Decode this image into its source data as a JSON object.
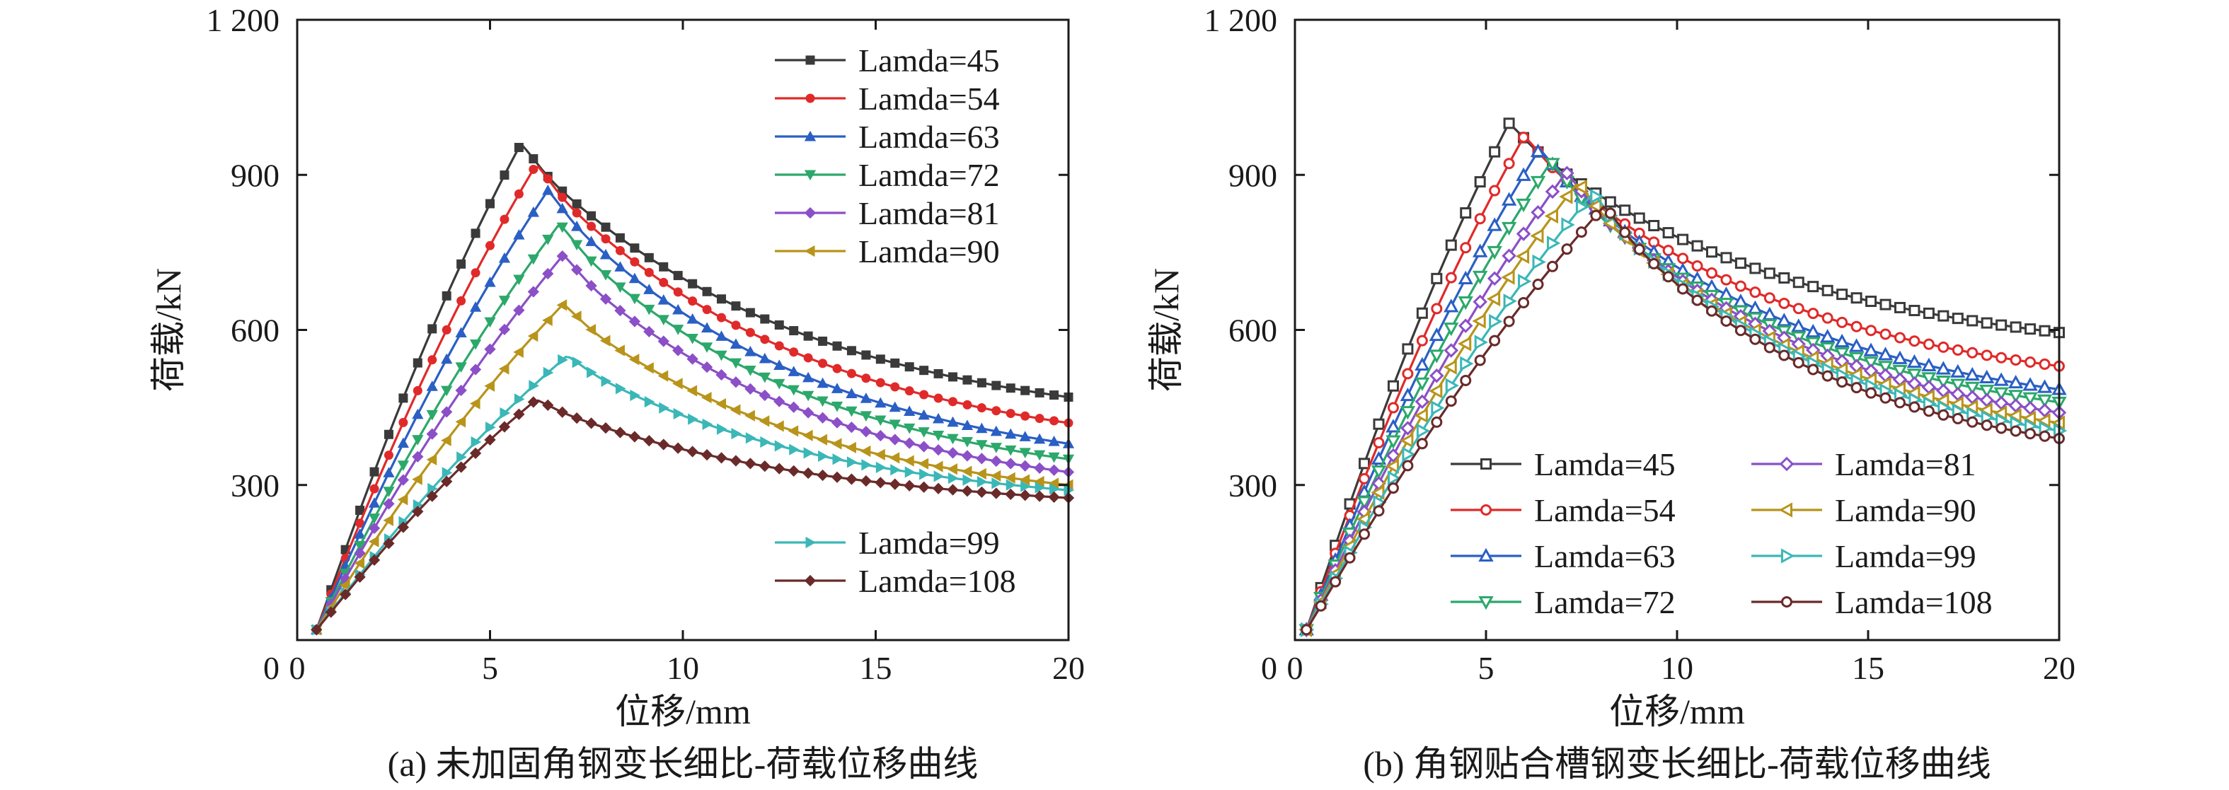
{
  "chart_data": [
    {
      "id": "a",
      "type": "line",
      "caption": "(a) 未加固角钢变长细比-荷载位移曲线",
      "xlabel": "位移/mm",
      "ylabel": "荷载/kN",
      "xlim": [
        0,
        20
      ],
      "ylim": [
        0,
        1200
      ],
      "xticks": [
        "0",
        "5",
        "10",
        "15",
        "20"
      ],
      "yticks": [
        "0",
        "300",
        "600",
        "900",
        "1 200"
      ],
      "xtick_values": [
        0,
        5,
        10,
        15,
        20
      ],
      "ytick_values": [
        0,
        300,
        600,
        900,
        1200
      ],
      "marker_fill": "filled",
      "legend_groups": [
        {
          "position": "top-right",
          "columns": 1,
          "series_names": [
            "Lamda=45",
            "Lamda=54",
            "Lamda=63",
            "Lamda=72",
            "Lamda=81",
            "Lamda=90"
          ]
        },
        {
          "position": "lower-right",
          "columns": 1,
          "series_names": [
            "Lamda=99",
            "Lamda=108"
          ]
        }
      ],
      "series": [
        {
          "name": "Lamda=45",
          "color": "#3a3a3a",
          "marker": "square",
          "peak_x": 5.8,
          "peak_y": 960,
          "end_y": 470
        },
        {
          "name": "Lamda=54",
          "color": "#e02a2a",
          "marker": "circle",
          "peak_x": 6.2,
          "peak_y": 920,
          "end_y": 420
        },
        {
          "name": "Lamda=63",
          "color": "#2a5fc4",
          "marker": "triangle-up",
          "peak_x": 6.5,
          "peak_y": 870,
          "end_y": 380
        },
        {
          "name": "Lamda=72",
          "color": "#2ca86b",
          "marker": "triangle-down",
          "peak_x": 6.8,
          "peak_y": 805,
          "end_y": 350
        },
        {
          "name": "Lamda=81",
          "color": "#8b4fc7",
          "marker": "diamond",
          "peak_x": 6.9,
          "peak_y": 745,
          "end_y": 325
        },
        {
          "name": "Lamda=90",
          "color": "#b8941a",
          "marker": "triangle-left",
          "peak_x": 6.9,
          "peak_y": 650,
          "end_y": 300
        },
        {
          "name": "Lamda=99",
          "color": "#3bb7b7",
          "marker": "triangle-right",
          "peak_x": 7.0,
          "peak_y": 550,
          "end_y": 290
        },
        {
          "name": "Lamda=108",
          "color": "#6a2a2a",
          "marker": "diamond",
          "peak_x": 6.2,
          "peak_y": 465,
          "end_y": 275
        }
      ]
    },
    {
      "id": "b",
      "type": "line",
      "caption": "(b) 角钢贴合槽钢变长细比-荷载位移曲线",
      "xlabel": "位移/mm",
      "ylabel": "荷载/kN",
      "xlim": [
        0,
        20
      ],
      "ylim": [
        0,
        1200
      ],
      "xticks": [
        "0",
        "5",
        "10",
        "15",
        "20"
      ],
      "yticks": [
        "0",
        "300",
        "600",
        "900",
        "1 200"
      ],
      "xtick_values": [
        0,
        5,
        10,
        15,
        20
      ],
      "ytick_values": [
        0,
        300,
        600,
        900,
        1200
      ],
      "marker_fill": "hollow",
      "legend_groups": [
        {
          "position": "lower-center",
          "columns": 2,
          "series_names": [
            "Lamda=45",
            "Lamda=54",
            "Lamda=63",
            "Lamda=72",
            "Lamda=81",
            "Lamda=90",
            "Lamda=99",
            "Lamda=108"
          ]
        }
      ],
      "series": [
        {
          "name": "Lamda=45",
          "color": "#3a3a3a",
          "marker": "square",
          "peak_x": 5.6,
          "peak_y": 1000,
          "end_y": 595
        },
        {
          "name": "Lamda=54",
          "color": "#e02a2a",
          "marker": "circle",
          "peak_x": 6.0,
          "peak_y": 975,
          "end_y": 530
        },
        {
          "name": "Lamda=63",
          "color": "#2a5fc4",
          "marker": "triangle-up",
          "peak_x": 6.4,
          "peak_y": 950,
          "end_y": 485
        },
        {
          "name": "Lamda=72",
          "color": "#2ca86b",
          "marker": "triangle-down",
          "peak_x": 6.7,
          "peak_y": 925,
          "end_y": 460
        },
        {
          "name": "Lamda=81",
          "color": "#8b4fc7",
          "marker": "diamond",
          "peak_x": 7.1,
          "peak_y": 905,
          "end_y": 440
        },
        {
          "name": "Lamda=90",
          "color": "#b8941a",
          "marker": "triangle-left",
          "peak_x": 7.4,
          "peak_y": 885,
          "end_y": 420
        },
        {
          "name": "Lamda=99",
          "color": "#3bb7b7",
          "marker": "triangle-right",
          "peak_x": 7.8,
          "peak_y": 865,
          "end_y": 405
        },
        {
          "name": "Lamda=108",
          "color": "#6a2a2a",
          "marker": "circle",
          "peak_x": 8.1,
          "peak_y": 840,
          "end_y": 390
        }
      ]
    }
  ]
}
